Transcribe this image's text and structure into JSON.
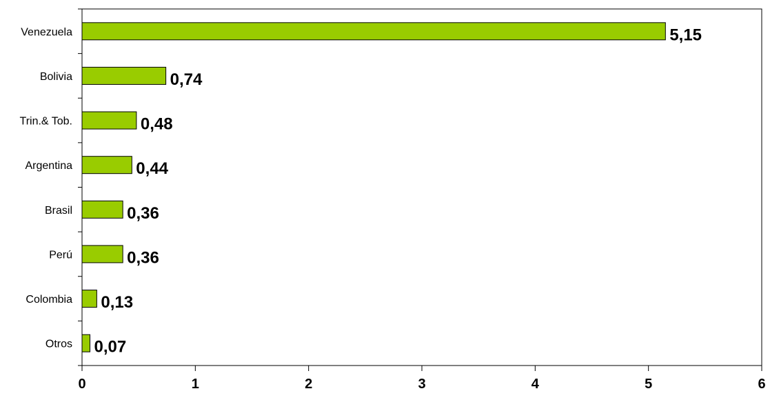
{
  "chart_data": {
    "type": "bar",
    "orientation": "horizontal",
    "categories": [
      "Venezuela",
      "Bolivia",
      "Trin.& Tob.",
      "Argentina",
      "Brasil",
      "Perú",
      "Colombia",
      "Otros"
    ],
    "values": [
      5.15,
      0.74,
      0.48,
      0.44,
      0.36,
      0.36,
      0.13,
      0.07
    ],
    "data_labels": [
      "5,15",
      "0,74",
      "0,48",
      "0,44",
      "0,36",
      "0,36",
      "0,13",
      "0,07"
    ],
    "x_ticks": [
      0,
      1,
      2,
      3,
      4,
      5,
      6
    ],
    "xlim": [
      0,
      6
    ],
    "title": "",
    "xlabel": "",
    "ylabel": "",
    "grid": false,
    "legend": "none",
    "bar_color": "#99cc00",
    "bar_edge_color": "#000000"
  }
}
